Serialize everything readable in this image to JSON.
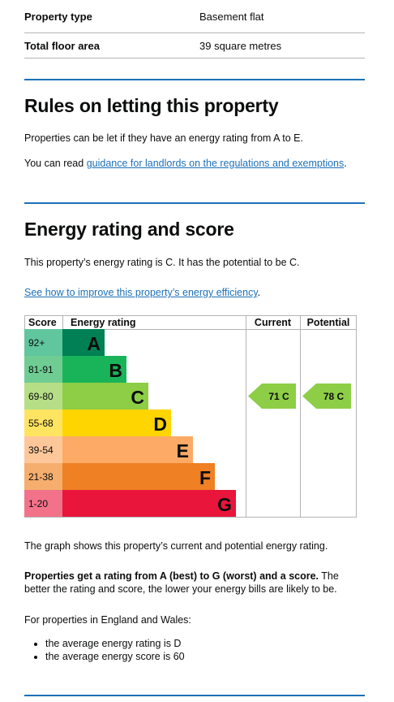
{
  "summary": [
    {
      "key": "Property type",
      "value": "Basement flat"
    },
    {
      "key": "Total floor area",
      "value": "39 square metres"
    }
  ],
  "letting": {
    "heading": "Rules on letting this property",
    "para1": "Properties can be let if they have an energy rating from A to E.",
    "para2_prefix": "You can read ",
    "para2_link": "guidance for landlords on the regulations and exemptions",
    "para2_suffix": "."
  },
  "energy": {
    "heading": "Energy rating and score",
    "intro": "This property’s energy rating is C. It has the potential to be C.",
    "improve_link": "See how to improve this property’s energy efficiency",
    "improve_suffix": ".",
    "graph_caption": "The graph shows this property’s current and potential energy rating.",
    "rating_bold": "Properties get a rating from A (best) to G (worst) and a score.",
    "rating_rest": " The better the rating and score, the lower your energy bills are likely to be.",
    "average_intro": "For properties in England and Wales:",
    "averages": [
      "the average energy rating is D",
      "the average energy score is 60"
    ]
  },
  "chart_data": {
    "type": "table",
    "headers": {
      "score": "Score",
      "rating": "Energy rating",
      "current": "Current",
      "potential": "Potential"
    },
    "bands": [
      {
        "range": "92+",
        "letter": "A",
        "color": "#008054",
        "score_bg": "#60c69e"
      },
      {
        "range": "81-91",
        "letter": "B",
        "color": "#19b459",
        "score_bg": "#6fcd93"
      },
      {
        "range": "69-80",
        "letter": "C",
        "color": "#8dce46",
        "score_bg": "#b6de86"
      },
      {
        "range": "55-68",
        "letter": "D",
        "color": "#ffd500",
        "score_bg": "#ffe462"
      },
      {
        "range": "39-54",
        "letter": "E",
        "color": "#fcaa65",
        "score_bg": "#fdc79a"
      },
      {
        "range": "21-38",
        "letter": "F",
        "color": "#ef8023",
        "score_bg": "#f5ae6e"
      },
      {
        "range": "1-20",
        "letter": "G",
        "color": "#e9153b",
        "score_bg": "#f2728a"
      }
    ],
    "current": {
      "score": 71,
      "band": "C",
      "label": "71 C"
    },
    "potential": {
      "score": 78,
      "band": "C",
      "label": "78 C"
    }
  }
}
